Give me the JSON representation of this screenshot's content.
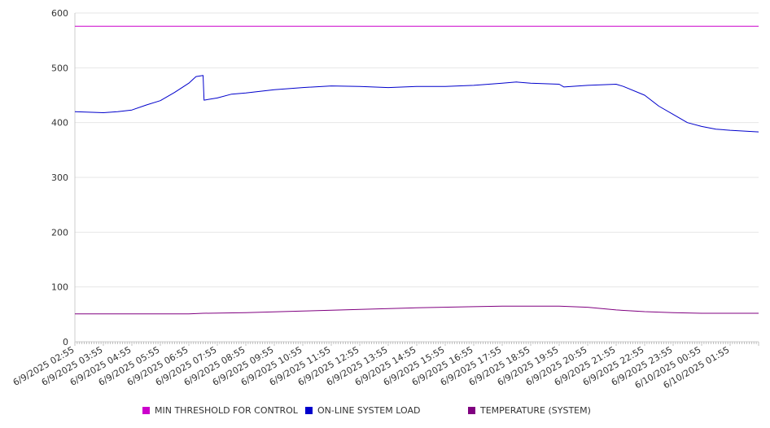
{
  "chart_data": {
    "type": "line",
    "title": "",
    "xlabel": "",
    "ylabel": "",
    "ylim": [
      0,
      600
    ],
    "yticks": [
      0,
      100,
      200,
      300,
      400,
      500,
      600
    ],
    "grid": true,
    "legend_position": "bottom",
    "x_tick_labels": [
      "6/9/2025 02:55",
      "6/9/2025 03:55",
      "6/9/2025 04:55",
      "6/9/2025 05:55",
      "6/9/2025 06:55",
      "6/9/2025 07:55",
      "6/9/2025 08:55",
      "6/9/2025 09:55",
      "6/9/2025 10:55",
      "6/9/2025 11:55",
      "6/9/2025 12:55",
      "6/9/2025 13:55",
      "6/9/2025 14:55",
      "6/9/2025 15:55",
      "6/9/2025 16:55",
      "6/9/2025 17:55",
      "6/9/2025 18:55",
      "6/9/2025 19:55",
      "6/9/2025 20:55",
      "6/9/2025 21:55",
      "6/9/2025 22:55",
      "6/9/2025 23:55",
      "6/10/2025 00:55",
      "6/10/2025 01:55"
    ],
    "x_range": [
      "6/9/2025 02:55",
      "6/10/2025 02:55"
    ],
    "series": [
      {
        "name": "MIN THRESHOLD FOR CONTROL",
        "color": "#cc00cc",
        "points": [
          [
            "6/9/2025 02:55",
            576
          ],
          [
            "6/10/2025 02:55",
            576
          ]
        ]
      },
      {
        "name": "ON-LINE SYSTEM LOAD",
        "color": "#0000cc",
        "points": [
          [
            "6/9/2025 02:55",
            420
          ],
          [
            "6/9/2025 03:25",
            419
          ],
          [
            "6/9/2025 03:55",
            418
          ],
          [
            "6/9/2025 04:25",
            420
          ],
          [
            "6/9/2025 04:55",
            423
          ],
          [
            "6/9/2025 05:25",
            432
          ],
          [
            "6/9/2025 05:55",
            440
          ],
          [
            "6/9/2025 06:25",
            455
          ],
          [
            "6/9/2025 06:55",
            472
          ],
          [
            "6/9/2025 07:10",
            484
          ],
          [
            "6/9/2025 07:25",
            486
          ],
          [
            "6/9/2025 07:27",
            441
          ],
          [
            "6/9/2025 07:55",
            445
          ],
          [
            "6/9/2025 08:25",
            452
          ],
          [
            "6/9/2025 08:55",
            454
          ],
          [
            "6/9/2025 09:25",
            457
          ],
          [
            "6/9/2025 09:55",
            460
          ],
          [
            "6/9/2025 10:55",
            464
          ],
          [
            "6/9/2025 11:55",
            467
          ],
          [
            "6/9/2025 12:55",
            466
          ],
          [
            "6/9/2025 13:55",
            464
          ],
          [
            "6/9/2025 14:55",
            466
          ],
          [
            "6/9/2025 15:55",
            466
          ],
          [
            "6/9/2025 16:55",
            468
          ],
          [
            "6/9/2025 17:55",
            472
          ],
          [
            "6/9/2025 18:25",
            474
          ],
          [
            "6/9/2025 18:55",
            472
          ],
          [
            "6/9/2025 19:55",
            470
          ],
          [
            "6/9/2025 20:05",
            465
          ],
          [
            "6/9/2025 20:55",
            468
          ],
          [
            "6/9/2025 21:55",
            470
          ],
          [
            "6/9/2025 22:10",
            466
          ],
          [
            "6/9/2025 22:55",
            450
          ],
          [
            "6/9/2025 23:25",
            430
          ],
          [
            "6/9/2025 23:55",
            415
          ],
          [
            "6/10/2025 00:25",
            400
          ],
          [
            "6/10/2025 00:55",
            393
          ],
          [
            "6/10/2025 01:25",
            388
          ],
          [
            "6/10/2025 01:55",
            386
          ],
          [
            "6/10/2025 02:55",
            383
          ]
        ]
      },
      {
        "name": "TEMPERATURE (SYSTEM)",
        "color": "#800080",
        "points": [
          [
            "6/9/2025 02:55",
            51
          ],
          [
            "6/9/2025 06:55",
            51
          ],
          [
            "6/9/2025 07:25",
            52
          ],
          [
            "6/9/2025 08:55",
            53
          ],
          [
            "6/9/2025 10:55",
            56
          ],
          [
            "6/9/2025 12:55",
            59
          ],
          [
            "6/9/2025 14:55",
            62
          ],
          [
            "6/9/2025 16:55",
            64
          ],
          [
            "6/9/2025 17:55",
            65
          ],
          [
            "6/9/2025 19:55",
            65
          ],
          [
            "6/9/2025 20:55",
            63
          ],
          [
            "6/9/2025 21:55",
            58
          ],
          [
            "6/9/2025 22:55",
            55
          ],
          [
            "6/9/2025 23:55",
            53
          ],
          [
            "6/10/2025 00:55",
            52
          ],
          [
            "6/10/2025 02:55",
            52
          ]
        ]
      }
    ]
  }
}
